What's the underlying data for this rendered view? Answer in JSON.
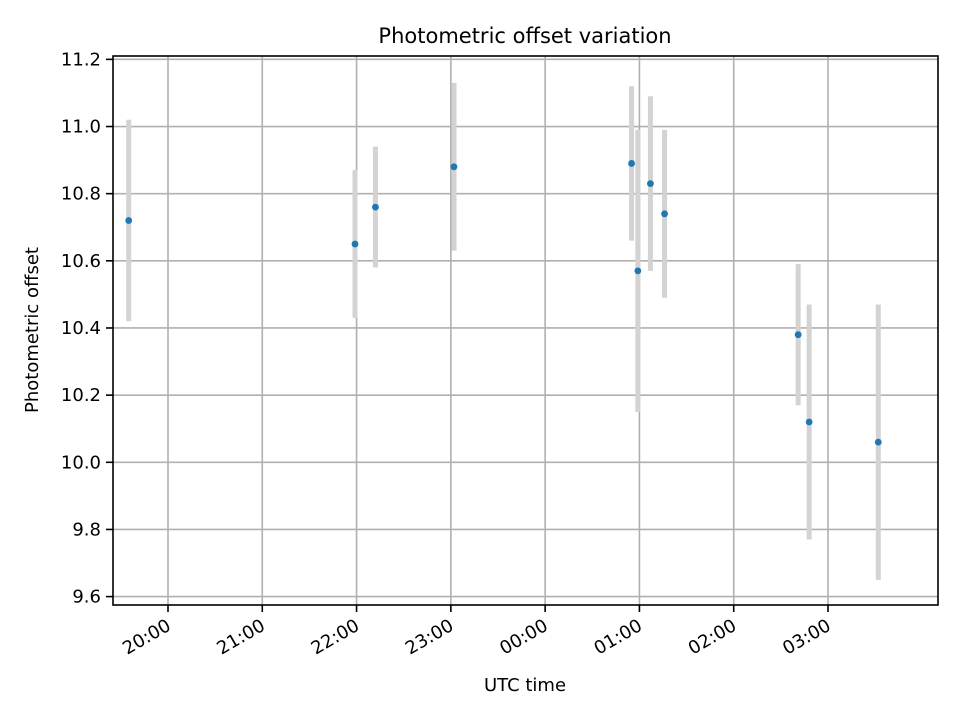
{
  "chart_data": {
    "type": "scatter",
    "title": "Photometric offset variation",
    "xlabel": "UTC time",
    "ylabel": "Photometric offset",
    "grid": true,
    "x_axis": {
      "kind": "time",
      "range": [
        "19:25",
        "28:10"
      ],
      "ticks": [
        "20:00",
        "21:00",
        "22:00",
        "23:00",
        "00:00",
        "01:00",
        "02:00",
        "03:00"
      ],
      "tick_positions": [
        "20:00",
        "21:00",
        "22:00",
        "23:00",
        "24:00",
        "25:00",
        "26:00",
        "27:00"
      ]
    },
    "y_axis": {
      "range": [
        9.575,
        11.21
      ],
      "ticks": [
        "9.6",
        "9.8",
        "10.0",
        "10.2",
        "10.4",
        "10.6",
        "10.8",
        "11.0",
        "11.2"
      ]
    },
    "series": [
      {
        "marker_color": "#1f77b4",
        "errorbar_color": "#d3d3d3",
        "points": [
          {
            "x": "19:35",
            "y": 10.72,
            "err": 0.3
          },
          {
            "x": "21:59",
            "y": 10.65,
            "err": 0.22
          },
          {
            "x": "22:12",
            "y": 10.76,
            "err": 0.18
          },
          {
            "x": "23:02",
            "y": 10.88,
            "err": 0.25
          },
          {
            "x": "00:55",
            "y": 10.89,
            "err": 0.23
          },
          {
            "x": "00:59",
            "y": 10.57,
            "err": 0.42
          },
          {
            "x": "01:07",
            "y": 10.83,
            "err": 0.26
          },
          {
            "x": "01:16",
            "y": 10.74,
            "err": 0.25
          },
          {
            "x": "02:41",
            "y": 10.38,
            "err": 0.21
          },
          {
            "x": "02:48",
            "y": 10.12,
            "err": 0.35
          },
          {
            "x": "03:32",
            "y": 10.06,
            "err": 0.41
          }
        ]
      }
    ]
  }
}
